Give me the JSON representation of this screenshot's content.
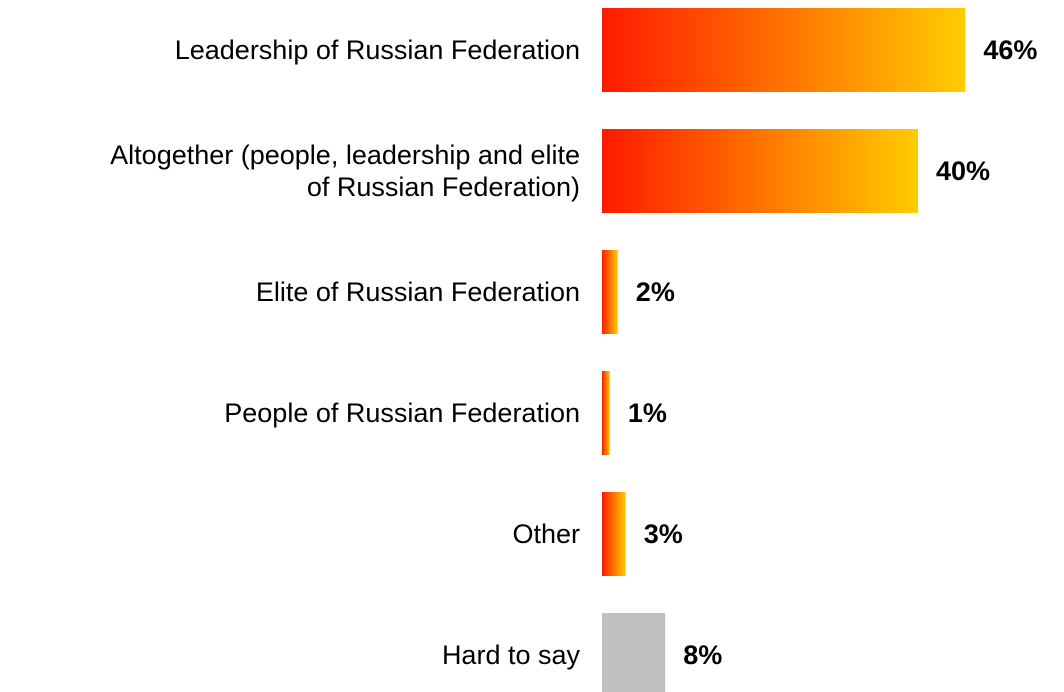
{
  "chart_data": {
    "type": "bar",
    "orientation": "horizontal",
    "categories": [
      [
        "Leadership of Russian Federation"
      ],
      [
        "Altogether (people, leadership and elite",
        "of Russian Federation)"
      ],
      [
        "Elite of Russian Federation"
      ],
      [
        "People of Russian Federation"
      ],
      [
        "Other"
      ],
      [
        "Hard to say"
      ]
    ],
    "values": [
      46,
      40,
      2,
      1,
      3,
      8
    ],
    "value_labels": [
      "46%",
      "40%",
      "2%",
      "1%",
      "3%",
      "8%"
    ],
    "unit": "%",
    "xlim": [
      0,
      50
    ],
    "grid": false,
    "legend": "none",
    "colors": {
      "gradient_start": "#ff1a00",
      "gradient_end": "#ffcc00",
      "neutral": "#c0c0c0"
    },
    "neutral_categories": [
      5
    ]
  }
}
